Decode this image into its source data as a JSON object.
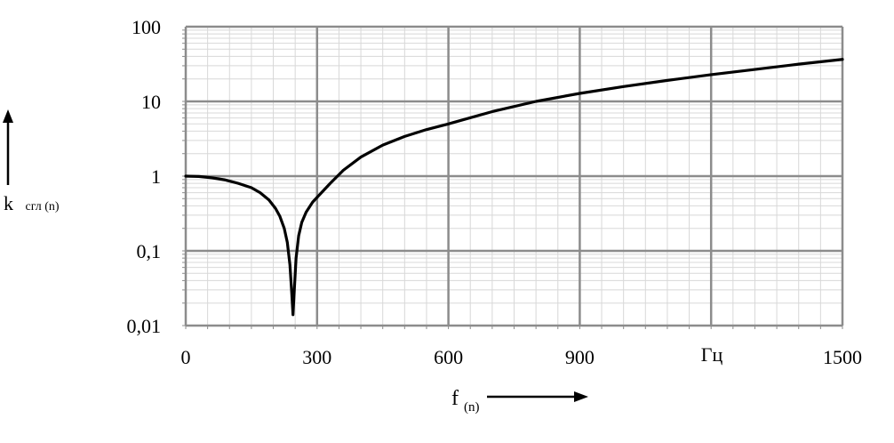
{
  "chart_data": {
    "type": "line",
    "title": "",
    "xlabel": "f",
    "xlabel_sub": "(n)",
    "ylabel": "k",
    "ylabel_sub": "сгл (n)",
    "unit_label": "Гц",
    "xlim": [
      0,
      1500
    ],
    "ylim": [
      0.01,
      100
    ],
    "y_scale": "log",
    "grid": true,
    "x_ticks": [
      {
        "value": 0,
        "label": "0"
      },
      {
        "value": 300,
        "label": "300"
      },
      {
        "value": 600,
        "label": "600"
      },
      {
        "value": 900,
        "label": "900"
      },
      {
        "value": 1500,
        "label": "1500"
      }
    ],
    "y_ticks": [
      {
        "value": 0.01,
        "label": "0,01"
      },
      {
        "value": 0.1,
        "label": "0,1"
      },
      {
        "value": 1,
        "label": "1"
      },
      {
        "value": 10,
        "label": "10"
      },
      {
        "value": 100,
        "label": "100"
      }
    ],
    "series": [
      {
        "x": [
          0,
          30,
          60,
          90,
          120,
          150,
          170,
          190,
          205,
          215,
          225,
          232,
          238,
          242,
          245,
          248,
          252,
          258,
          265,
          275,
          290,
          310,
          330,
          360,
          400,
          450,
          500,
          550,
          600,
          700,
          800,
          900,
          1000,
          1100,
          1200,
          1300,
          1400,
          1500
        ],
        "y": [
          1.0,
          0.99,
          0.95,
          0.89,
          0.8,
          0.7,
          0.6,
          0.48,
          0.37,
          0.29,
          0.2,
          0.13,
          0.065,
          0.028,
          0.014,
          0.03,
          0.08,
          0.16,
          0.24,
          0.33,
          0.45,
          0.6,
          0.8,
          1.2,
          1.8,
          2.6,
          3.4,
          4.2,
          5.0,
          7.3,
          10.0,
          12.8,
          15.8,
          19.1,
          22.8,
          26.8,
          31.5,
          36.5
        ]
      }
    ]
  }
}
